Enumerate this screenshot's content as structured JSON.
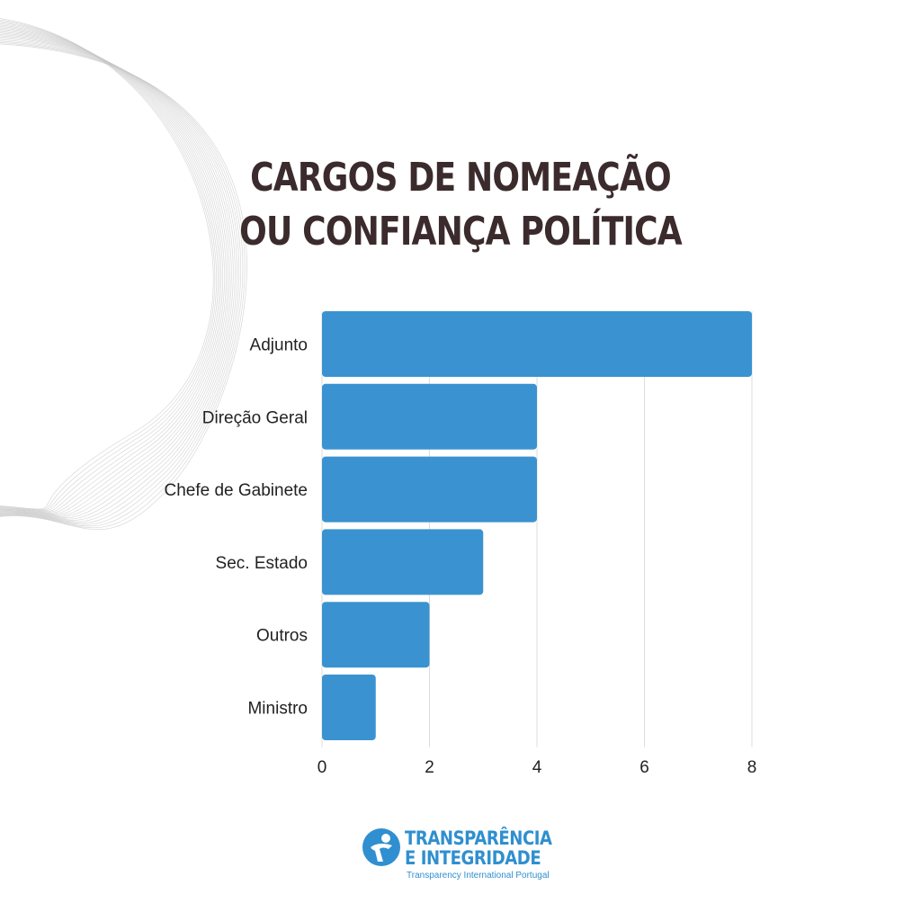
{
  "title": {
    "line1": "CARGOS DE NOMEAÇÃO",
    "line2": "OU CONFIANÇA POLÍTICA"
  },
  "colors": {
    "bar": "#3a93d0",
    "title": "#3b2b2d",
    "brand": "#2f8fd0",
    "grid": "#dddddd"
  },
  "chart_data": {
    "type": "bar",
    "orientation": "horizontal",
    "title": "CARGOS DE NOMEAÇÃO OU CONFIANÇA POLÍTICA",
    "categories": [
      "Adjunto",
      "Direção Geral",
      "Chefe de Gabinete",
      "Sec. Estado",
      "Outros",
      "Ministro"
    ],
    "values": [
      8,
      4,
      4,
      3,
      2,
      1
    ],
    "xlim": [
      0,
      8
    ],
    "xticks": [
      "0",
      "2",
      "4",
      "6",
      "8"
    ],
    "grid": "vertical",
    "xlabel": "",
    "ylabel": ""
  },
  "logo": {
    "line1": "TRANSPARÊNCIA",
    "line2": "E INTEGRIDADE",
    "subtitle": "Transparency International Portugal"
  }
}
